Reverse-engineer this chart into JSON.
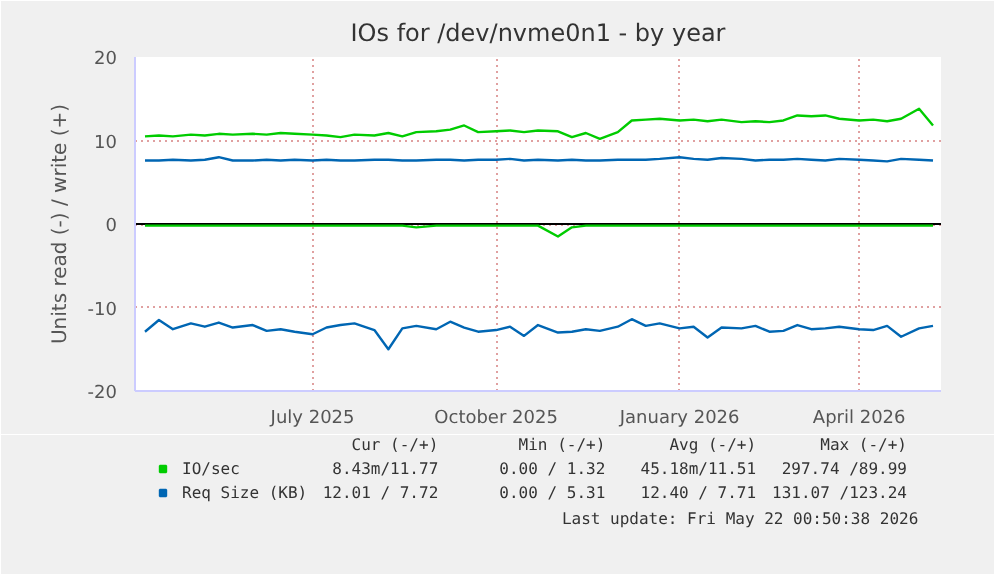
{
  "chart_data": {
    "type": "line",
    "title": "IOs for /dev/nvme0n1 - by year",
    "ylabel": "Units read (-) / write (+)",
    "x": [
      "2025-04-08",
      "2025-04-15",
      "2025-04-22",
      "2025-05-01",
      "2025-05-08",
      "2025-05-15",
      "2025-05-22",
      "2025-06-01",
      "2025-06-08",
      "2025-06-15",
      "2025-06-22",
      "2025-07-01",
      "2025-07-08",
      "2025-07-15",
      "2025-07-22",
      "2025-08-01",
      "2025-08-08",
      "2025-08-15",
      "2025-08-22",
      "2025-09-01",
      "2025-09-08",
      "2025-09-15",
      "2025-09-22",
      "2025-10-01",
      "2025-10-08",
      "2025-10-15",
      "2025-10-22",
      "2025-11-01",
      "2025-11-08",
      "2025-11-15",
      "2025-11-22",
      "2025-12-01",
      "2025-12-08",
      "2025-12-15",
      "2025-12-22",
      "2026-01-01",
      "2026-01-08",
      "2026-01-15",
      "2026-01-22",
      "2026-02-01",
      "2026-02-08",
      "2026-02-15",
      "2026-02-22",
      "2026-03-01",
      "2026-03-08",
      "2026-03-15",
      "2026-03-22",
      "2026-04-01",
      "2026-04-08",
      "2026-04-15",
      "2026-04-22",
      "2026-05-01",
      "2026-05-08"
    ],
    "series": [
      {
        "name": "IO/sec",
        "color": "#00cc00",
        "values": [
          10.5,
          10.6,
          10.5,
          10.7,
          10.6,
          10.8,
          10.7,
          10.8,
          10.7,
          10.9,
          10.8,
          10.7,
          10.6,
          10.4,
          10.7,
          10.6,
          10.9,
          10.5,
          11.0,
          11.1,
          11.3,
          11.8,
          11.0,
          11.1,
          11.2,
          11.0,
          11.2,
          11.1,
          10.4,
          10.9,
          10.2,
          11.0,
          12.4,
          12.5,
          12.6,
          12.4,
          12.5,
          12.3,
          12.5,
          12.2,
          12.3,
          12.2,
          12.4,
          13.0,
          12.9,
          13.0,
          12.6,
          12.4,
          12.5,
          12.3,
          12.6,
          13.8,
          11.8
        ]
      },
      {
        "color": "#00cc00",
        "values": [
          -0.2,
          -0.2,
          -0.2,
          -0.2,
          -0.2,
          -0.2,
          -0.2,
          -0.2,
          -0.2,
          -0.2,
          -0.2,
          -0.2,
          -0.2,
          -0.2,
          -0.2,
          -0.2,
          -0.2,
          -0.2,
          -0.4,
          -0.2,
          -0.2,
          -0.2,
          -0.2,
          -0.2,
          -0.2,
          -0.2,
          -0.2,
          -1.5,
          -0.4,
          -0.2,
          -0.2,
          -0.2,
          -0.2,
          -0.2,
          -0.2,
          -0.2,
          -0.2,
          -0.2,
          -0.2,
          -0.2,
          -0.2,
          -0.2,
          -0.2,
          -0.2,
          -0.2,
          -0.2,
          -0.2,
          -0.2,
          -0.2,
          -0.2,
          -0.2,
          -0.2,
          -0.2
        ]
      },
      {
        "name": "Req Size (KB)",
        "color": "#0066b3",
        "values": [
          7.6,
          7.6,
          7.7,
          7.6,
          7.7,
          8.0,
          7.6,
          7.6,
          7.7,
          7.6,
          7.7,
          7.6,
          7.7,
          7.6,
          7.6,
          7.7,
          7.7,
          7.6,
          7.6,
          7.7,
          7.7,
          7.6,
          7.7,
          7.7,
          7.8,
          7.6,
          7.7,
          7.6,
          7.7,
          7.6,
          7.6,
          7.7,
          7.7,
          7.7,
          7.8,
          8.0,
          7.8,
          7.7,
          7.9,
          7.8,
          7.6,
          7.7,
          7.7,
          7.8,
          7.7,
          7.6,
          7.8,
          7.7,
          7.6,
          7.5,
          7.8,
          7.7,
          7.6
        ]
      },
      {
        "color": "#0066b3",
        "values": [
          -12.9,
          -11.5,
          -12.6,
          -11.9,
          -12.3,
          -11.8,
          -12.4,
          -12.1,
          -12.8,
          -12.6,
          -12.9,
          -13.2,
          -12.4,
          -12.1,
          -11.9,
          -12.7,
          -15.0,
          -12.5,
          -12.2,
          -12.6,
          -11.7,
          -12.4,
          -12.9,
          -12.7,
          -12.3,
          -13.4,
          -12.1,
          -13.0,
          -12.9,
          -12.6,
          -12.8,
          -12.3,
          -11.4,
          -12.2,
          -11.9,
          -12.5,
          -12.3,
          -13.6,
          -12.4,
          -12.5,
          -12.2,
          -12.9,
          -12.8,
          -12.1,
          -12.6,
          -12.5,
          -12.3,
          -12.6,
          -12.7,
          -12.2,
          -13.5,
          -12.5,
          -12.2
        ]
      }
    ],
    "xlim": [
      "2025-04-03",
      "2026-05-12"
    ],
    "xticks": [
      {
        "value": "2025-07-01",
        "label": "July 2025"
      },
      {
        "value": "2025-10-01",
        "label": "October 2025"
      },
      {
        "value": "2026-01-01",
        "label": "January 2026"
      },
      {
        "value": "2026-04-01",
        "label": "April 2026"
      }
    ],
    "ylim": [
      -20,
      20
    ],
    "yticks": [
      -20,
      -10,
      0,
      10,
      20
    ],
    "grid": true,
    "legend": "bottom",
    "ref_lines": [
      {
        "axis": "y",
        "value": 0,
        "color": "#000000"
      }
    ],
    "annotations": [
      "Cur (-/+)",
      "Min (-/+)",
      "Avg (-/+)",
      "Max (-/+)",
      "8.43m/11.77",
      "0.00 / 1.32",
      "45.18m/11.51",
      "297.74 /89.99",
      "12.01 / 7.72",
      "0.00 / 5.31",
      "12.40 / 7.71",
      "131.07 /123.24",
      "Last update: Fri May 22 00:50:38 2026"
    ]
  }
}
